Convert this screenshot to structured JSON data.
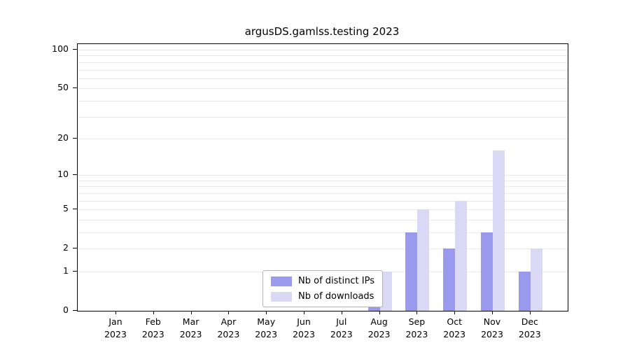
{
  "chart_data": {
    "type": "bar",
    "title": "argusDS.gamlss.testing 2023",
    "categories": [
      "Jan",
      "Feb",
      "Mar",
      "Apr",
      "May",
      "Jun",
      "Jul",
      "Aug",
      "Sep",
      "Oct",
      "Nov",
      "Dec"
    ],
    "x_year": "2023",
    "series": [
      {
        "name": "Nb of distinct IPs",
        "color": "#9999ee",
        "values": [
          0,
          0,
          0,
          0,
          0,
          0,
          0,
          1,
          3,
          2,
          3,
          1
        ]
      },
      {
        "name": "Nb of downloads",
        "color": "#d9d9f6",
        "values": [
          0,
          0,
          0,
          0,
          0,
          0,
          0,
          1,
          5,
          6,
          16,
          2
        ]
      }
    ],
    "yticks": [
      0,
      1,
      2,
      5,
      10,
      20,
      50,
      100
    ],
    "gridlines": [
      1,
      2,
      3,
      4,
      5,
      6,
      7,
      8,
      9,
      10,
      20,
      30,
      40,
      50,
      60,
      70,
      80,
      90,
      100
    ],
    "scale": "log1p",
    "ylim": [
      0,
      100
    ],
    "legend_position": "bottom-center",
    "grid": "on"
  }
}
